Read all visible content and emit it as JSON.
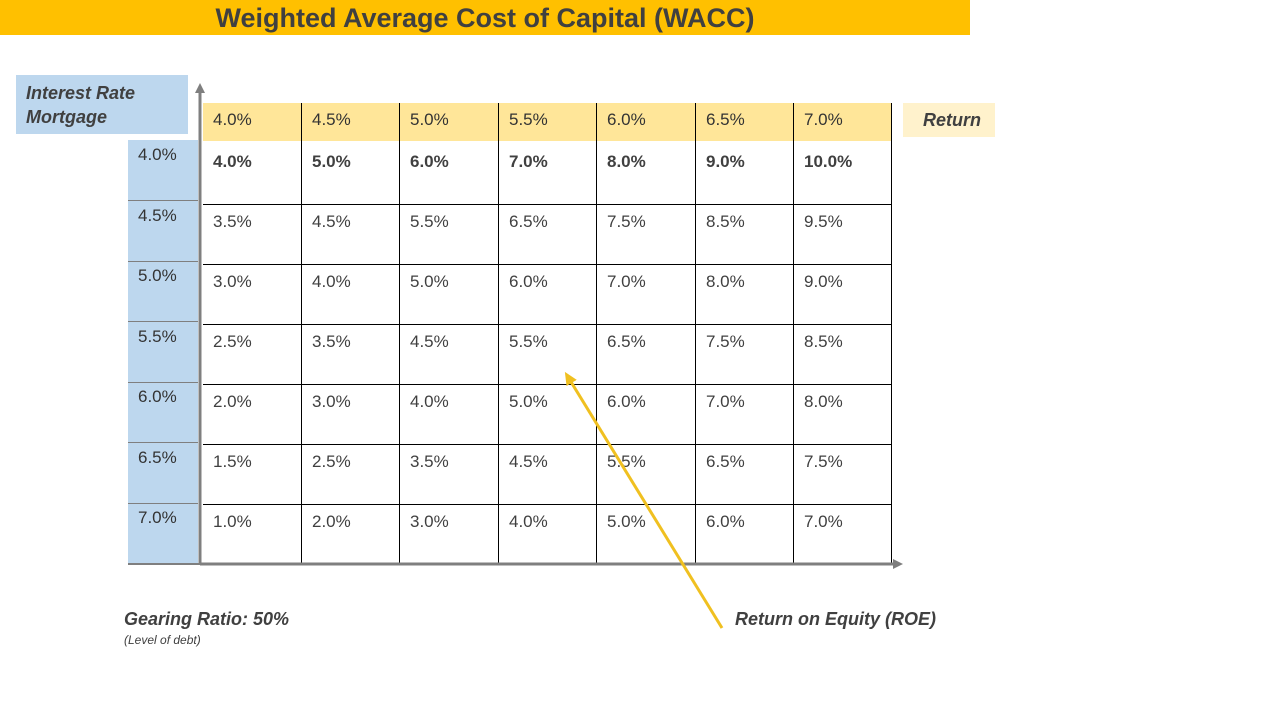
{
  "title": "Weighted Average Cost of Capital (WACC)",
  "labels": {
    "interest_rate_mortgage": "Interest Rate\nMortgage",
    "return": "Return",
    "gearing_ratio": "Gearing Ratio: 50%",
    "level_of_debt": "(Level  of debt)",
    "roe": "Return on Equity (ROE)"
  },
  "table": {
    "column_headers": [
      "4.0%",
      "4.5%",
      "5.0%",
      "5.5%",
      "6.0%",
      "6.5%",
      "7.0%"
    ],
    "row_headers": [
      "4.0%",
      "4.5%",
      "5.0%",
      "5.5%",
      "6.0%",
      "6.5%",
      "7.0%"
    ],
    "rows": [
      [
        "4.0%",
        "5.0%",
        "6.0%",
        "7.0%",
        "8.0%",
        "9.0%",
        "10.0%"
      ],
      [
        "3.5%",
        "4.5%",
        "5.5%",
        "6.5%",
        "7.5%",
        "8.5%",
        "9.5%"
      ],
      [
        "3.0%",
        "4.0%",
        "5.0%",
        "6.0%",
        "7.0%",
        "8.0%",
        "9.0%"
      ],
      [
        "2.5%",
        "3.5%",
        "4.5%",
        "5.5%",
        "6.5%",
        "7.5%",
        "8.5%"
      ],
      [
        "2.0%",
        "3.0%",
        "4.0%",
        "5.0%",
        "6.0%",
        "7.0%",
        "8.0%"
      ],
      [
        "1.5%",
        "2.5%",
        "3.5%",
        "4.5%",
        "5.5%",
        "6.5%",
        "7.5%"
      ],
      [
        "1.0%",
        "2.0%",
        "3.0%",
        "4.0%",
        "5.0%",
        "6.0%",
        "7.0%"
      ]
    ],
    "bold_row": 0
  },
  "colors": {
    "title_bar": "#ffc000",
    "header_band": "#ffe699",
    "row_header_band": "#bdd7ee",
    "return_label_bg": "#fff2cc",
    "arrow": "#f0c020",
    "axis": "#7f7f7f"
  }
}
